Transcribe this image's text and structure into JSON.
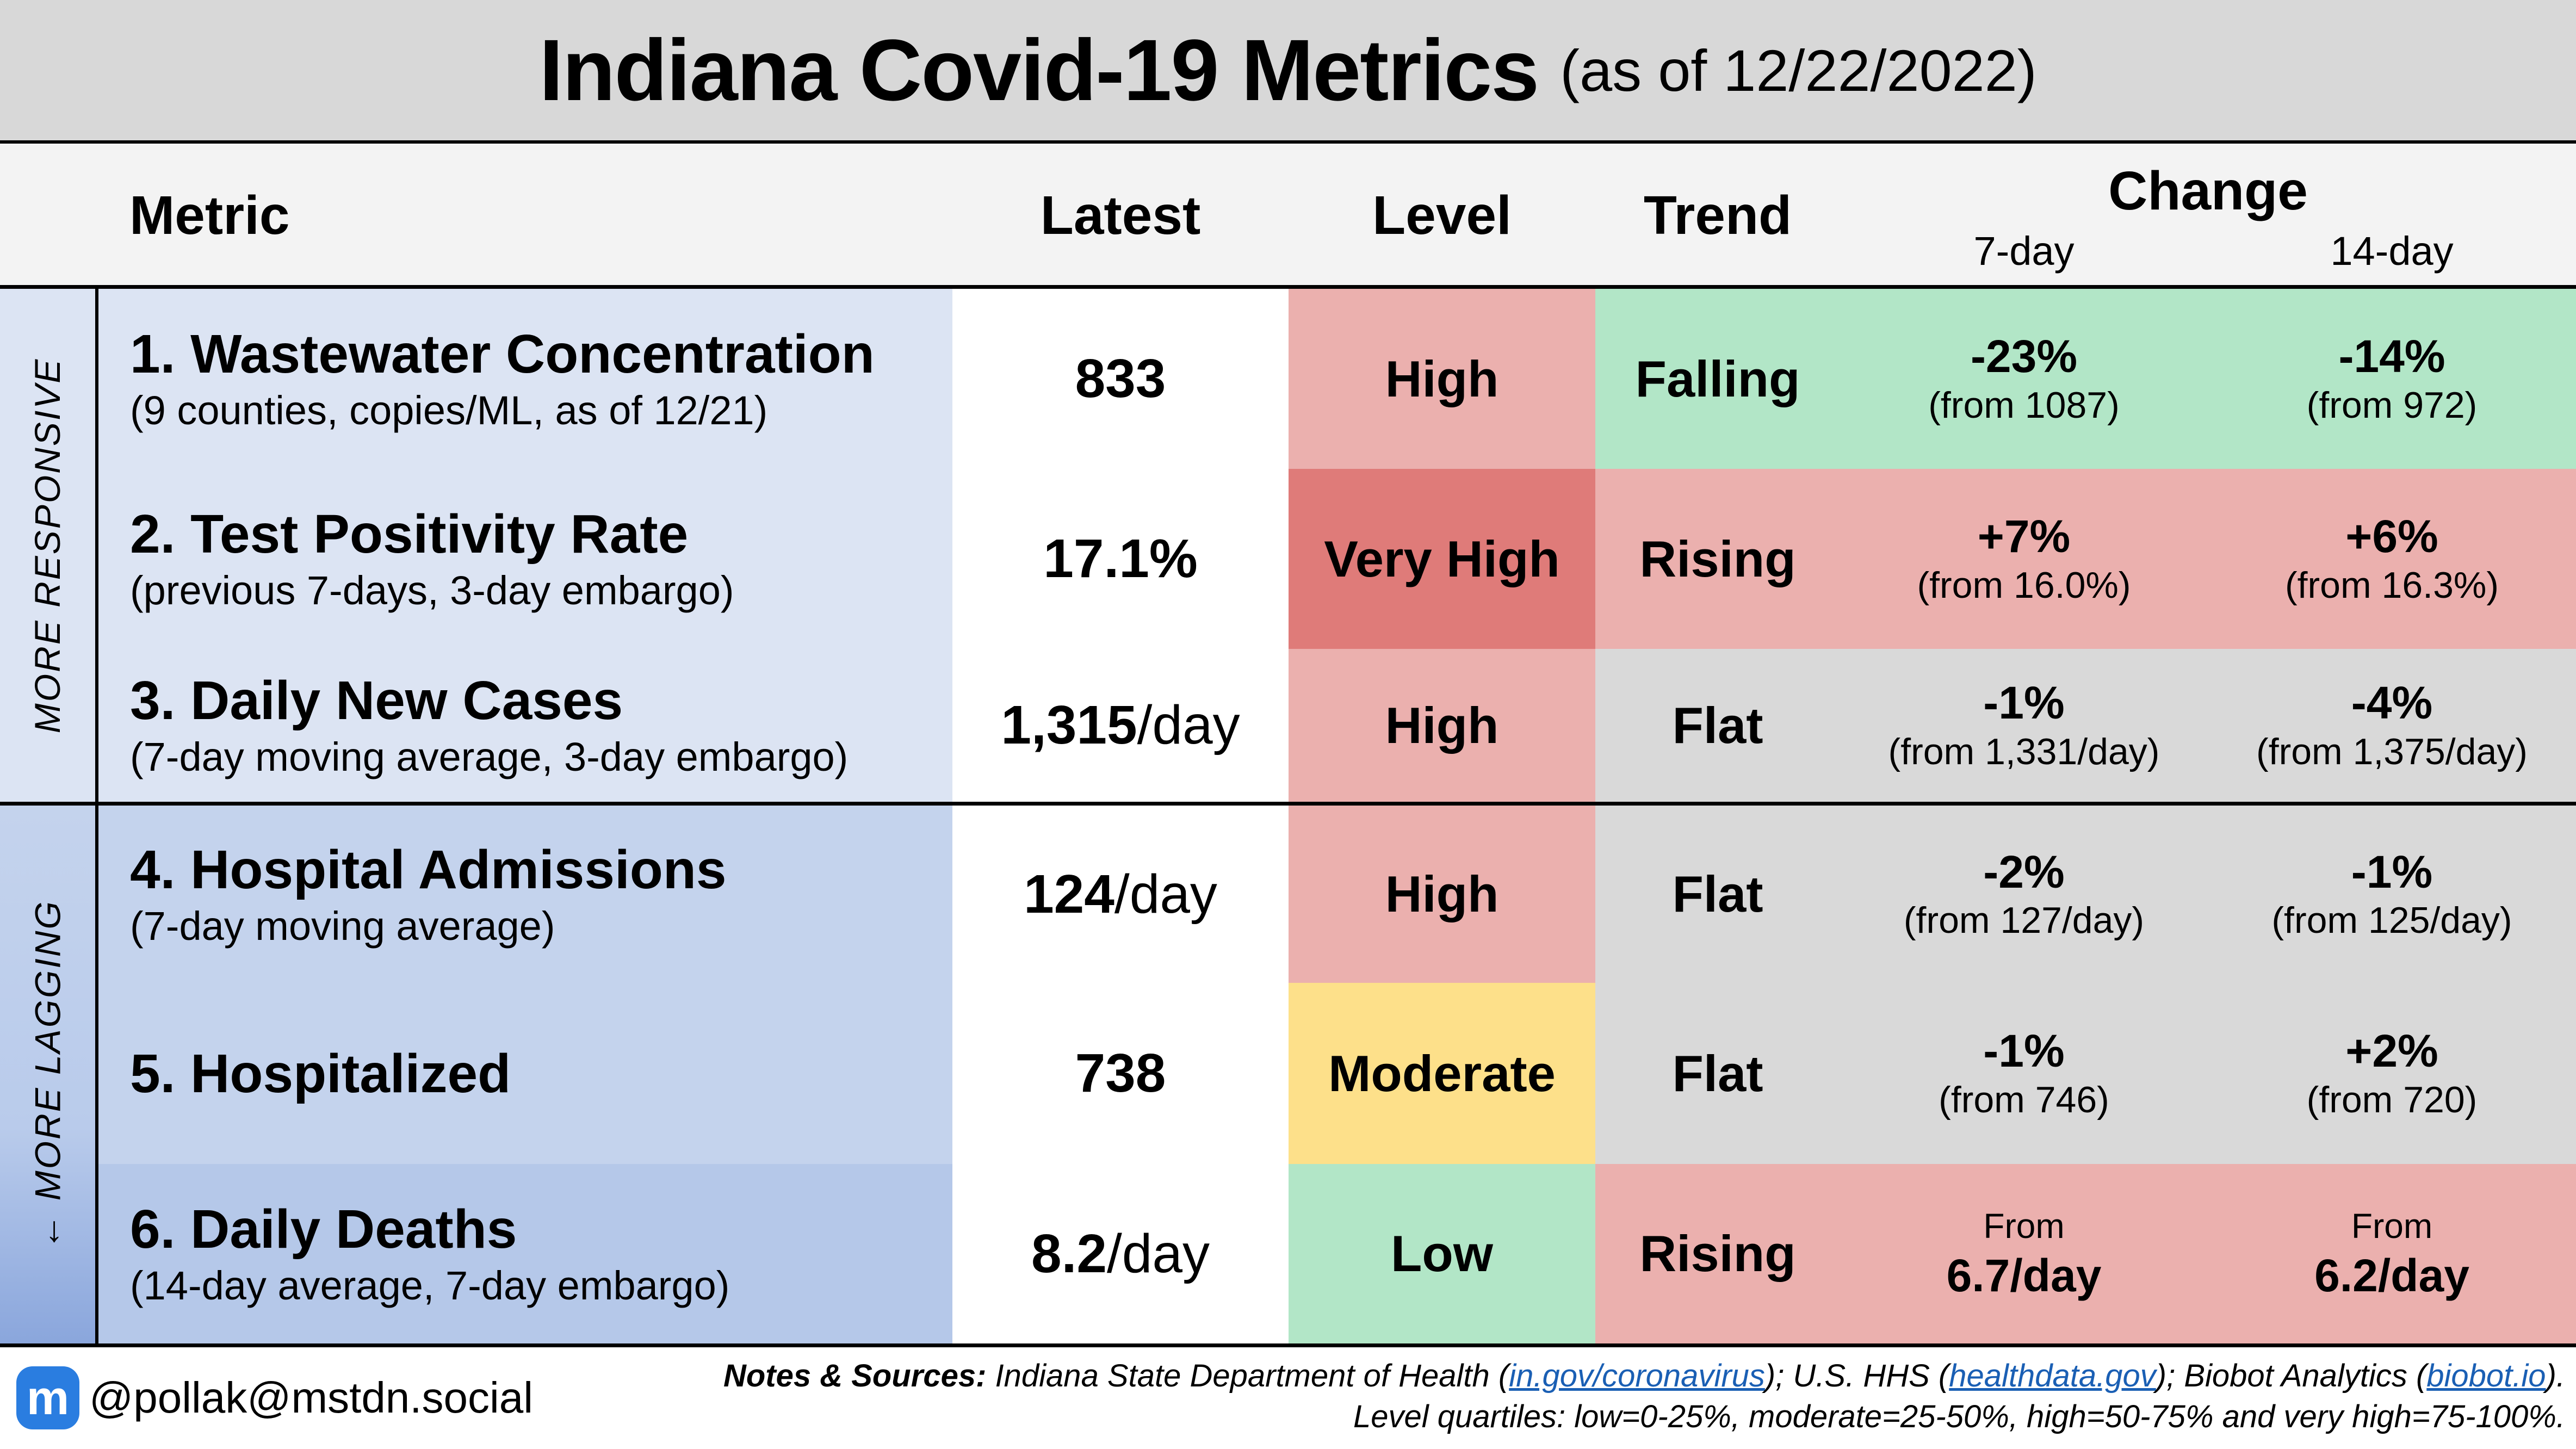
{
  "title": {
    "main": "Indiana Covid-19 Metrics",
    "sub": "(as of 12/22/2022)"
  },
  "headers": {
    "metric": "Metric",
    "latest": "Latest",
    "level": "Level",
    "trend": "Trend",
    "change": "Change",
    "seven": "7-day",
    "fourteen": "14-day"
  },
  "groups": {
    "responsive": "MORE RESPONSIVE",
    "lagging": "← MORE LAGGING"
  },
  "colors": {
    "high": "#ebb0ae",
    "very_high": "#df7b79",
    "moderate": "#fde08a",
    "low": "#b2e6c7",
    "flat": "#d9d9d9",
    "rising": "#ebb0ae",
    "falling": "#b2e6c7"
  },
  "rows": [
    {
      "name": "1. Wastewater Concentration",
      "desc": "(9 counties, copies/ML, as of 12/21)",
      "latest": "833",
      "unit": "",
      "level": "High",
      "trend": "Falling",
      "c7": {
        "pct": "-23%",
        "from": "(from 1087)"
      },
      "c14": {
        "pct": "-14%",
        "from": "(from 972)"
      }
    },
    {
      "name": "2. Test Positivity Rate",
      "desc": "(previous 7-days, 3-day embargo)",
      "latest": "17.1%",
      "unit": "",
      "level": "Very High",
      "trend": "Rising",
      "c7": {
        "pct": "+7%",
        "from": "(from 16.0%)"
      },
      "c14": {
        "pct": "+6%",
        "from": "(from 16.3%)"
      }
    },
    {
      "name": "3. Daily New Cases",
      "desc": "(7-day moving average, 3-day embargo)",
      "latest": "1,315",
      "unit": "/day",
      "level": "High",
      "trend": "Flat",
      "c7": {
        "pct": "-1%",
        "from": "(from 1,331/day)"
      },
      "c14": {
        "pct": "-4%",
        "from": "(from 1,375/day)"
      }
    },
    {
      "name": "4. Hospital Admissions",
      "desc": "(7-day moving average)",
      "latest": "124",
      "unit": "/day",
      "level": "High",
      "trend": "Flat",
      "c7": {
        "pct": "-2%",
        "from": "(from 127/day)"
      },
      "c14": {
        "pct": "-1%",
        "from": "(from 125/day)"
      }
    },
    {
      "name": "5. Hospitalized",
      "desc": "",
      "latest": "738",
      "unit": "",
      "level": "Moderate",
      "trend": "Flat",
      "c7": {
        "pct": "-1%",
        "from": "(from 746)"
      },
      "c14": {
        "pct": "+2%",
        "from": "(from 720)"
      }
    },
    {
      "name": "6. Daily Deaths",
      "desc": "(14-day average, 7-day embargo)",
      "latest": "8.2",
      "unit": "/day",
      "level": "Low",
      "trend": "Rising",
      "c7": {
        "lbl": "From",
        "big": "6.7/day"
      },
      "c14": {
        "lbl": "From",
        "big": "6.2/day"
      }
    }
  ],
  "footer": {
    "handle": "@pollak@mstdn.social",
    "icon": "mastodon-icon",
    "notes_label": "Notes & Sources:",
    "src1": " Indiana State Department of Health (",
    "link1": "in.gov/coronavirus",
    "src2": "); U.S. HHS (",
    "link2": "healthdata.gov",
    "src3": ");  Biobot Analytics (",
    "link3": "biobot.io",
    "src4": ").",
    "quartiles": "Level quartiles: low=0-25%, moderate=25-50%, high=50-75% and very high=75-100%."
  }
}
